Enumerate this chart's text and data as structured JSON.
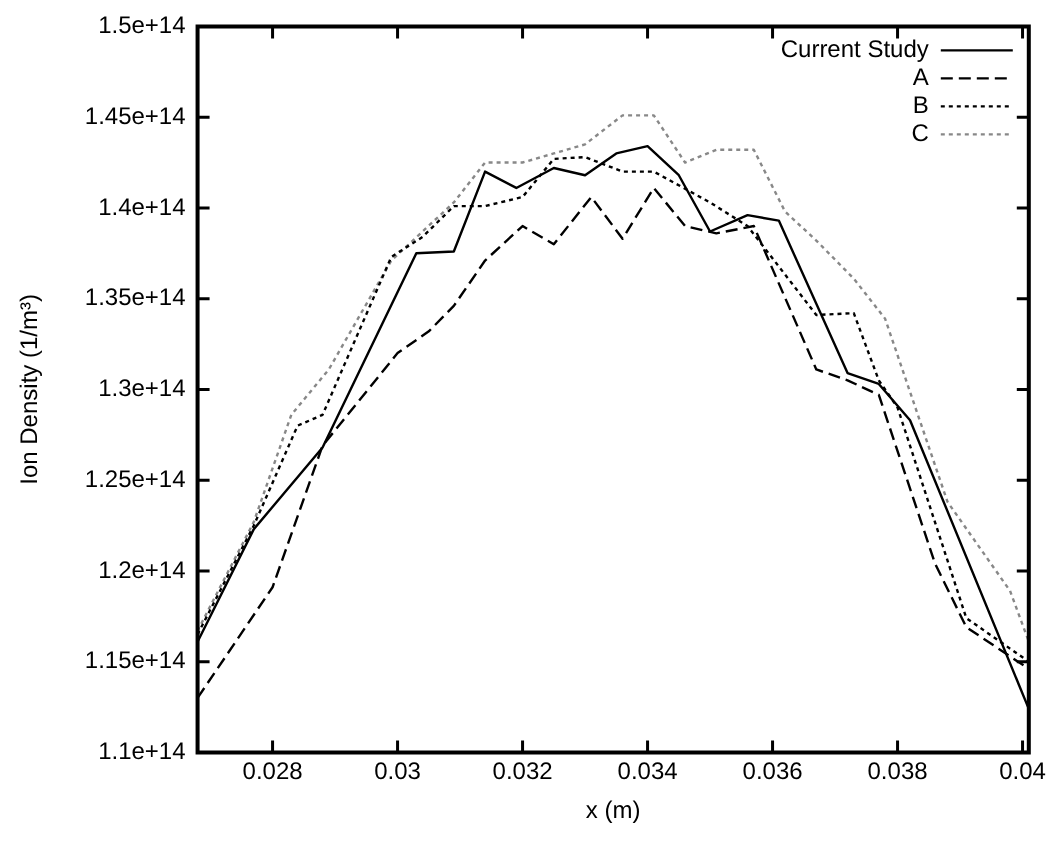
{
  "chart_data": {
    "type": "line",
    "xlabel": "x (m)",
    "ylabel": "Ion Density (1/m³)",
    "xlim": [
      0.0268,
      0.0401
    ],
    "xticks": [
      0.028,
      0.03,
      0.032,
      0.034,
      0.036,
      0.038,
      0.04
    ],
    "ylim": [
      110000000000000.0,
      150000000000000.0
    ],
    "yticks": [
      {
        "value": 110000000000000.0,
        "label": "1.1e+14"
      },
      {
        "value": 115000000000000.0,
        "label": "1.15e+14"
      },
      {
        "value": 120000000000000.0,
        "label": "1.2e+14"
      },
      {
        "value": 125000000000000.0,
        "label": "1.25e+14"
      },
      {
        "value": 130000000000000.0,
        "label": "1.3e+14"
      },
      {
        "value": 135000000000000.0,
        "label": "1.35e+14"
      },
      {
        "value": 140000000000000.0,
        "label": "1.4e+14"
      },
      {
        "value": 145000000000000.0,
        "label": "1.45e+14"
      },
      {
        "value": 150000000000000.0,
        "label": "1.5e+14"
      }
    ],
    "grid": false,
    "legend": "top right",
    "marker": "none",
    "series": [
      {
        "name": "Current Study",
        "color": "#000000",
        "line_style": "solid",
        "x": [
          0.0268,
          0.0277,
          0.0288,
          0.0303,
          0.0309,
          0.0314,
          0.0319,
          0.0325,
          0.033,
          0.0335,
          0.034,
          0.0345,
          0.035,
          0.0356,
          0.0361,
          0.0372,
          0.0377,
          0.0382,
          0.0401
        ],
        "values": [
          116100000000000.0,
          122300000000000.0,
          126800000000000.0,
          137500000000000.0,
          137600000000000.0,
          142000000000000.0,
          141100000000000.0,
          142200000000000.0,
          141800000000000.0,
          143000000000000.0,
          143400000000000.0,
          141800000000000.0,
          138700000000000.0,
          139600000000000.0,
          139300000000000.0,
          130900000000000.0,
          130300000000000.0,
          128300000000000.0,
          112400000000000.0
        ]
      },
      {
        "name": "A",
        "color": "#000000",
        "line_style": "dashed",
        "x": [
          0.0268,
          0.028,
          0.0288,
          0.03,
          0.0305,
          0.0309,
          0.0314,
          0.032,
          0.0325,
          0.0331,
          0.0336,
          0.0341,
          0.0346,
          0.0351,
          0.0357,
          0.0367,
          0.0372,
          0.0377,
          0.0386,
          0.0391,
          0.0401
        ],
        "values": [
          113000000000000.0,
          119100000000000.0,
          126900000000000.0,
          132000000000000.0,
          133200000000000.0,
          134600000000000.0,
          137100000000000.0,
          139000000000000.0,
          138000000000000.0,
          140600000000000.0,
          138300000000000.0,
          141100000000000.0,
          139000000000000.0,
          138600000000000.0,
          139000000000000.0,
          131100000000000.0,
          130500000000000.0,
          129700000000000.0,
          120400000000000.0,
          116900000000000.0,
          114600000000000.0
        ]
      },
      {
        "name": "B",
        "color": "#000000",
        "line_style": "dotted",
        "x": [
          0.0268,
          0.0277,
          0.0284,
          0.0288,
          0.0299,
          0.0304,
          0.0309,
          0.0314,
          0.032,
          0.0325,
          0.033,
          0.0336,
          0.0341,
          0.035,
          0.0356,
          0.0367,
          0.0373,
          0.0377,
          0.038,
          0.0391,
          0.0401
        ],
        "values": [
          116500000000000.0,
          122500000000000.0,
          128000000000000.0,
          128600000000000.0,
          137300000000000.0,
          138400000000000.0,
          140100000000000.0,
          140100000000000.0,
          140600000000000.0,
          142700000000000.0,
          142800000000000.0,
          142000000000000.0,
          142000000000000.0,
          140300000000000.0,
          139000000000000.0,
          134100000000000.0,
          134200000000000.0,
          130500000000000.0,
          129000000000000.0,
          117400000000000.0,
          115000000000000.0
        ]
      },
      {
        "name": "C",
        "color": "#888888",
        "line_style": "dotted",
        "x": [
          0.0268,
          0.0277,
          0.0283,
          0.0289,
          0.0299,
          0.0309,
          0.0314,
          0.032,
          0.0325,
          0.033,
          0.0336,
          0.0341,
          0.0346,
          0.0351,
          0.0357,
          0.0362,
          0.0367,
          0.0373,
          0.0378,
          0.0388,
          0.0398,
          0.0401
        ],
        "values": [
          116700000000000.0,
          122700000000000.0,
          128600000000000.0,
          131100000000000.0,
          137100000000000.0,
          140300000000000.0,
          142500000000000.0,
          142500000000000.0,
          143000000000000.0,
          143500000000000.0,
          145100000000000.0,
          145100000000000.0,
          142500000000000.0,
          143200000000000.0,
          143200000000000.0,
          139800000000000.0,
          138200000000000.0,
          136100000000000.0,
          133900000000000.0,
          123800000000000.0,
          118900000000000.0,
          116100000000000.0
        ]
      }
    ]
  }
}
